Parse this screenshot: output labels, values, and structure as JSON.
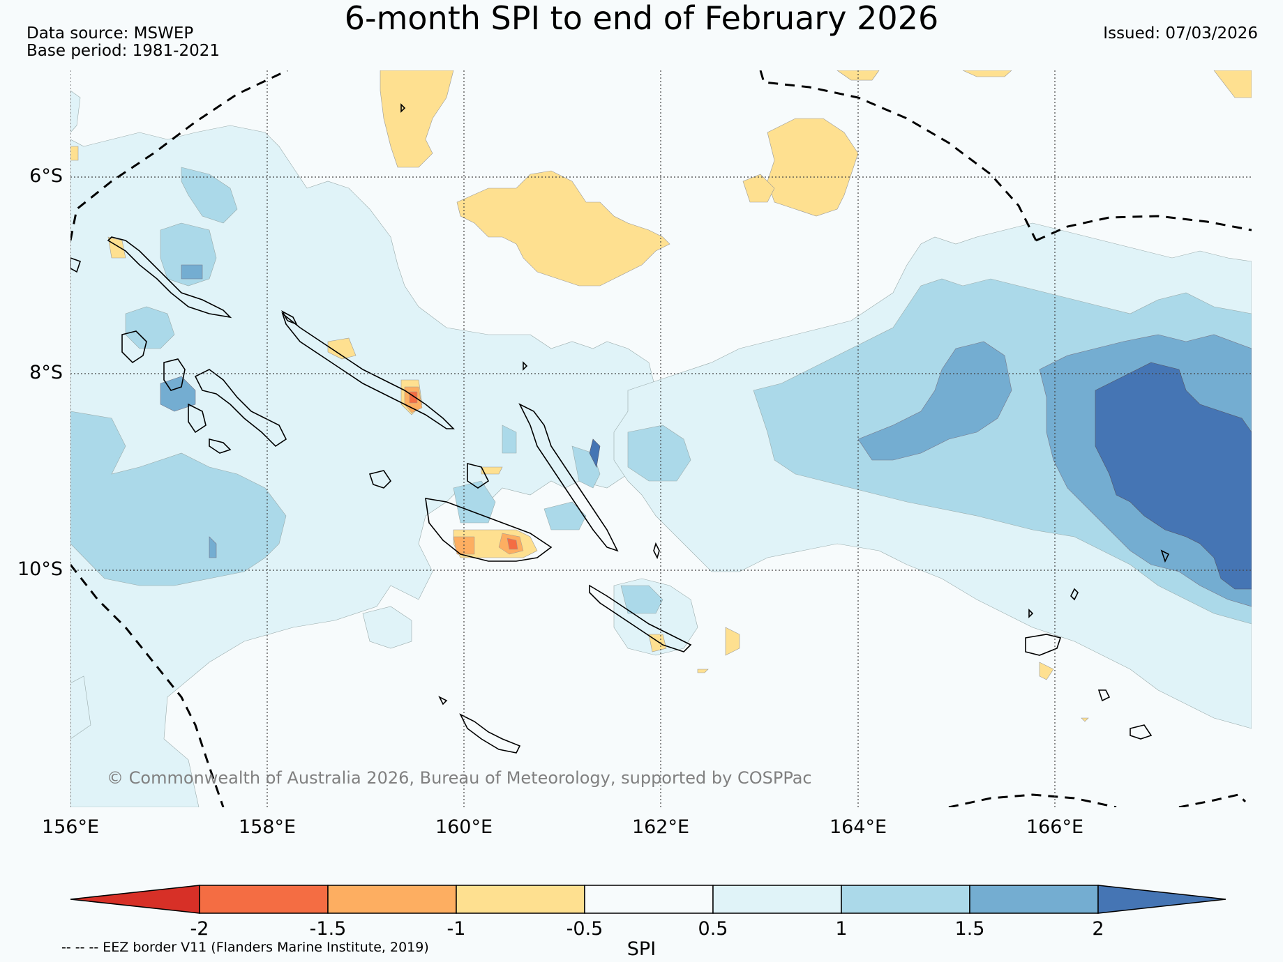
{
  "title": "6-month SPI to end of February 2026",
  "data_source": "Data source: MSWEP",
  "base_period": "Base period: 1981-2021",
  "issued": "Issued: 07/03/2026",
  "copyright": "© Commonwealth of Australia 2026, Bureau of Meteorology, supported by COSPPac",
  "eez_note": "-- -- -- EEZ border V11 (Flanders Marine Institute, 2019)",
  "map": {
    "lat_labels": [
      "6°S",
      "8°S",
      "10°S"
    ],
    "lon_labels": [
      "156°E",
      "158°E",
      "160°E",
      "162°E",
      "164°E",
      "166°E"
    ],
    "lon_range": [
      156,
      168
    ],
    "lat_range": [
      -4.9,
      -12.4
    ],
    "background_color": "#f7fbfc"
  },
  "colorbar": {
    "label": "SPI",
    "ticks": [
      "-2",
      "-1.5",
      "-1",
      "-0.5",
      "0.5",
      "1",
      "1.5",
      "2"
    ],
    "colors": {
      "below_-2": "#d73027",
      "-2_-1.5": "#f46d43",
      "-1.5_-1": "#fdae61",
      "-1_-0.5": "#fee090",
      "-0.5_0.5": "#f7fbfc",
      "0.5_1": "#e0f3f8",
      "1_1.5": "#abd9e9",
      "1.5_2": "#74add1",
      "above_2": "#4575b4"
    }
  }
}
